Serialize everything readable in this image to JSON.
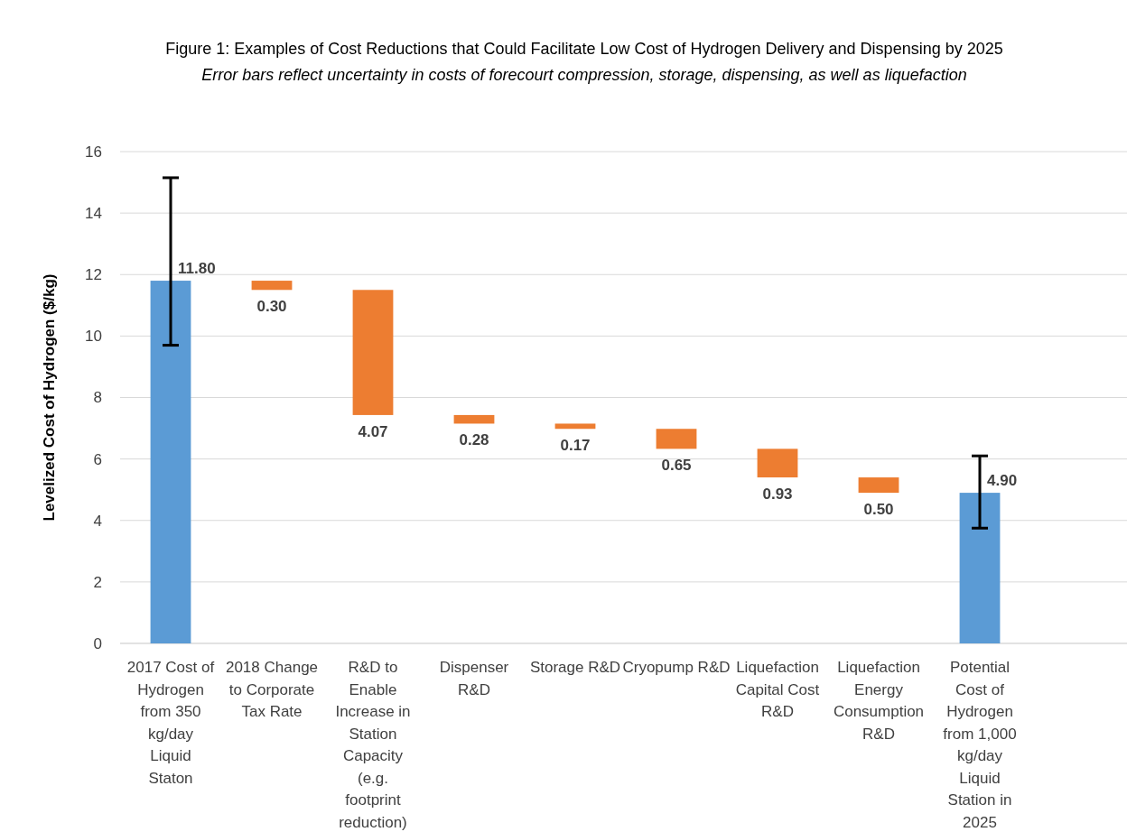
{
  "chart_data": {
    "type": "bar",
    "title": "Figure 1: Examples of Cost Reductions that Could Facilitate Low Cost of Hydrogen Delivery and Dispensing by 2025",
    "subtitle": "Error bars reflect uncertainty in costs of forecourt compression, storage, dispensing, as well as liquefaction",
    "ylabel": "Levelized Cost of Hydrogen ($/kg)",
    "categories": [
      "2017 Cost of Hydrogen from 350 kg/day Liquid Staton",
      "2018 Change to Corporate Tax Rate",
      "R&D to Enable Increase in Station Capacity (e.g. footprint reduction)",
      "Dispenser R&D",
      "Storage R&D",
      "Cryopump R&D",
      "Liquefaction Capital Cost R&D",
      "Liquefaction Energy Consumption R&D",
      "Potential Cost of Hydrogen from 1,000 kg/day Liquid Station in 2025"
    ],
    "values": [
      11.8,
      0.3,
      4.07,
      0.28,
      0.17,
      0.65,
      0.93,
      0.5,
      4.9
    ],
    "base": [
      0,
      11.5,
      7.43,
      7.15,
      6.98,
      6.33,
      5.4,
      4.9,
      0
    ],
    "colors": [
      "#5b9bd5",
      "#ed7d31",
      "#ed7d31",
      "#ed7d31",
      "#ed7d31",
      "#ed7d31",
      "#ed7d31",
      "#ed7d31",
      "#5b9bd5"
    ],
    "errors": [
      [
        9.7,
        15.15
      ],
      null,
      null,
      null,
      null,
      null,
      null,
      null,
      [
        3.75,
        6.1
      ]
    ],
    "value_labels": [
      "11.80",
      "0.30",
      "4.07",
      "0.28",
      "0.17",
      "0.65",
      "0.93",
      "0.50",
      "4.90"
    ],
    "ylim": [
      0,
      16
    ],
    "yticks": [
      0,
      2,
      4,
      6,
      8,
      10,
      12,
      14,
      16
    ],
    "grid": "y"
  }
}
